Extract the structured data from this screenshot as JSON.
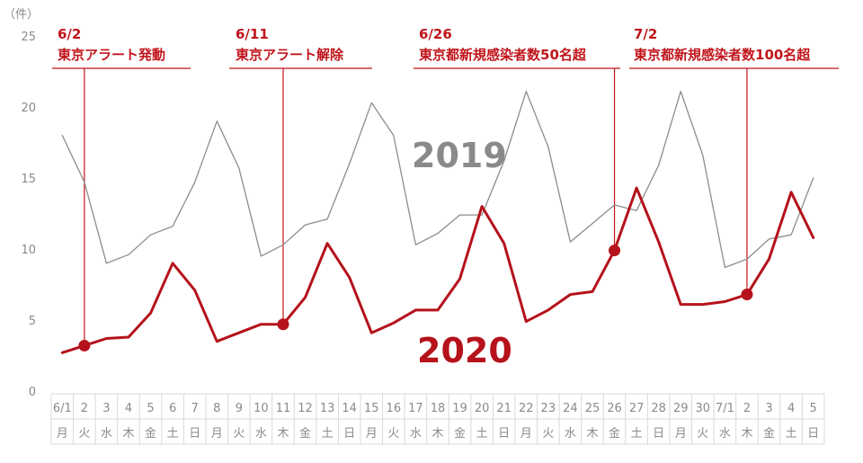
{
  "chart_data": {
    "type": "line",
    "y_unit": "（件）",
    "ylim": [
      0,
      25
    ],
    "yticks": [
      0,
      5,
      10,
      15,
      20,
      25
    ],
    "categories": [
      "6/1",
      "2",
      "3",
      "4",
      "5",
      "6",
      "7",
      "8",
      "9",
      "10",
      "11",
      "12",
      "13",
      "14",
      "15",
      "16",
      "17",
      "18",
      "19",
      "20",
      "21",
      "22",
      "23",
      "24",
      "25",
      "26",
      "27",
      "28",
      "29",
      "30",
      "7/1",
      "2",
      "3",
      "4",
      "5"
    ],
    "weekdays": [
      "月",
      "火",
      "水",
      "木",
      "金",
      "土",
      "日",
      "月",
      "火",
      "水",
      "木",
      "金",
      "土",
      "日",
      "月",
      "火",
      "水",
      "木",
      "金",
      "土",
      "日",
      "月",
      "火",
      "水",
      "木",
      "金",
      "土",
      "日",
      "月",
      "火",
      "水",
      "木",
      "金",
      "土",
      "日"
    ],
    "series": [
      {
        "name": "2019",
        "color": "#8c8c8c",
        "values": [
          18.0,
          14.7,
          9.0,
          9.6,
          11.0,
          11.6,
          14.7,
          19.0,
          15.7,
          9.5,
          10.3,
          11.7,
          12.1,
          16.0,
          20.3,
          18.0,
          10.3,
          11.1,
          12.4,
          12.4,
          16.2,
          21.1,
          17.2,
          10.5,
          11.8,
          13.1,
          12.7,
          15.9,
          21.1,
          16.6,
          8.7,
          9.3,
          10.7,
          11.0,
          15.0
        ]
      },
      {
        "name": "2020",
        "color": "#b5121b",
        "values": [
          2.7,
          3.2,
          3.7,
          3.8,
          5.5,
          9.0,
          7.1,
          3.5,
          4.1,
          4.7,
          4.7,
          6.6,
          10.4,
          8.0,
          4.1,
          4.8,
          5.7,
          5.7,
          7.9,
          13.0,
          10.4,
          4.9,
          5.7,
          6.8,
          7.0,
          9.9,
          14.3,
          10.5,
          6.1,
          6.1,
          6.3,
          6.8,
          9.3,
          14.0,
          10.8
        ]
      }
    ],
    "annotations": [
      {
        "date": "6/2",
        "label": "東京アラート発動",
        "index": 1
      },
      {
        "date": "6/11",
        "label": "東京アラート解除",
        "index": 10
      },
      {
        "date": "6/26",
        "label": "東京都新規感染者数50名超",
        "index": 25
      },
      {
        "date": "7/2",
        "label": "東京都新規感染者数100名超",
        "index": 31
      }
    ],
    "grid": false,
    "legend": "inline"
  }
}
